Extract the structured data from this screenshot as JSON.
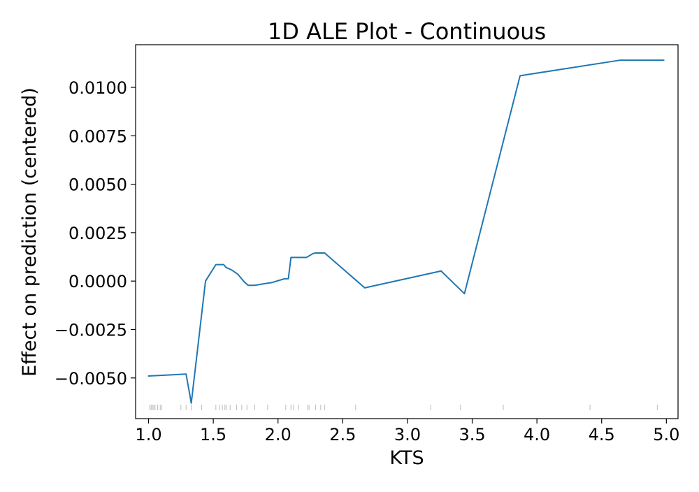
{
  "chart_data": {
    "type": "line",
    "title": "1D ALE Plot - Continuous",
    "xlabel": "KTS",
    "ylabel": "Effect on prediction (centered)",
    "xlim": [
      0.9,
      5.09
    ],
    "ylim": [
      -0.0071,
      0.0122
    ],
    "x_ticks": [
      1.0,
      1.5,
      2.0,
      2.5,
      3.0,
      3.5,
      4.0,
      4.5,
      5.0
    ],
    "x_tick_labels": [
      "1.0",
      "1.5",
      "2.0",
      "2.5",
      "3.0",
      "3.5",
      "4.0",
      "4.5",
      "5.0"
    ],
    "y_ticks": [
      -0.005,
      -0.0025,
      0.0,
      0.0025,
      0.005,
      0.0075,
      0.01
    ],
    "y_tick_labels": [
      "−0.0050",
      "−0.0025",
      "0.0000",
      "0.0025",
      "0.0050",
      "0.0075",
      "0.0100"
    ],
    "grid": false,
    "series": [
      {
        "color": "#1f77b4",
        "x": [
          1.0,
          1.29,
          1.33,
          1.44,
          1.52,
          1.58,
          1.6,
          1.64,
          1.69,
          1.74,
          1.77,
          1.82,
          1.88,
          1.95,
          2.05,
          2.08,
          2.1,
          2.18,
          2.22,
          2.27,
          2.29,
          2.36,
          2.67,
          3.26,
          3.44,
          3.87,
          4.64,
          4.98
        ],
        "y": [
          -0.0049,
          -0.0048,
          -0.0063,
          0.0,
          0.00085,
          0.00085,
          0.0007,
          0.00058,
          0.00035,
          -5e-05,
          -0.00022,
          -0.00022,
          -0.00015,
          -8e-05,
          0.00012,
          0.00012,
          0.00122,
          0.00122,
          0.00122,
          0.00142,
          0.00145,
          0.00145,
          -0.00035,
          0.00052,
          -0.00065,
          0.0106,
          0.0114,
          0.0114
        ]
      }
    ],
    "rug": {
      "color": "#bbbbbb",
      "x": [
        1.01,
        1.02,
        1.03,
        1.04,
        1.05,
        1.07,
        1.09,
        1.1,
        1.25,
        1.29,
        1.33,
        1.41,
        1.52,
        1.55,
        1.57,
        1.59,
        1.6,
        1.63,
        1.68,
        1.72,
        1.76,
        1.82,
        1.92,
        2.06,
        2.1,
        2.12,
        2.16,
        2.23,
        2.24,
        2.29,
        2.33,
        2.36,
        2.6,
        3.18,
        3.41,
        3.74,
        4.41,
        4.93
      ]
    }
  }
}
